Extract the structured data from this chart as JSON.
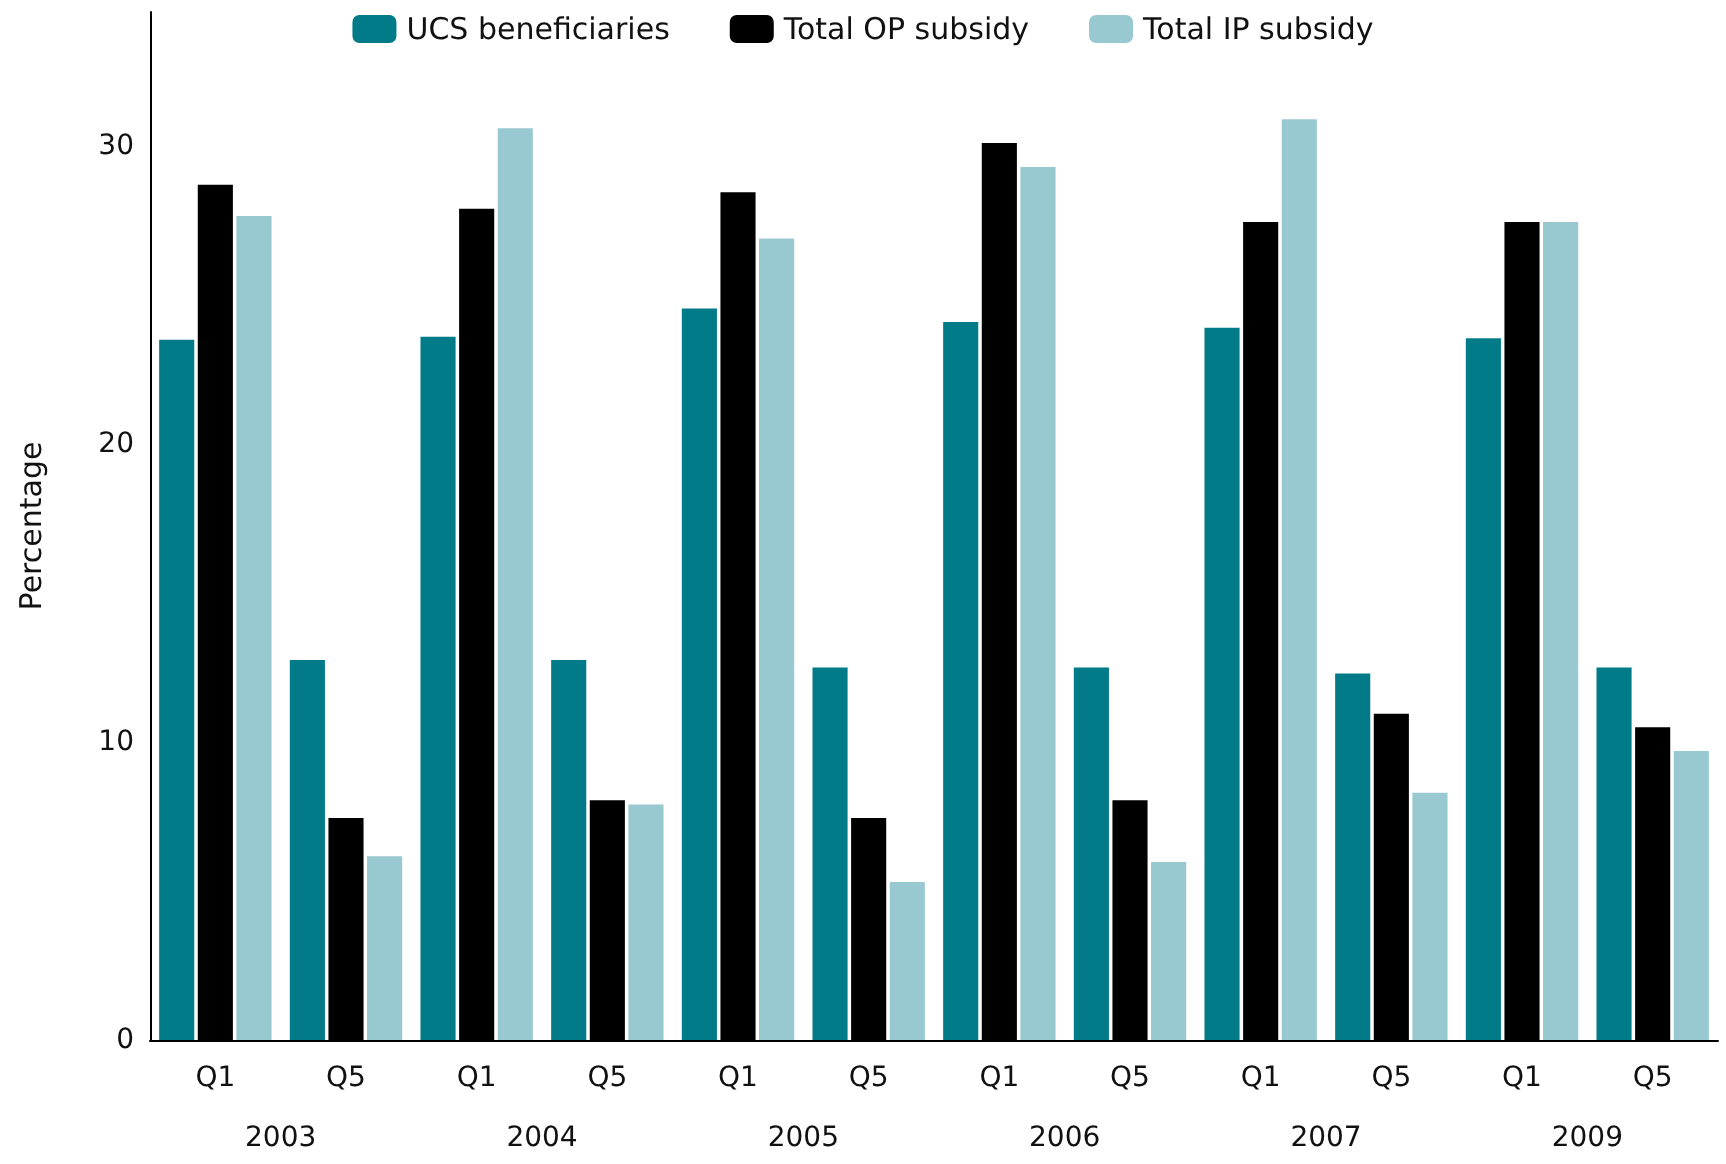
{
  "chart_data": {
    "type": "bar",
    "ylabel": "Percentage",
    "categories": [
      "Q1",
      "Q5",
      "Q1",
      "Q5",
      "Q1",
      "Q5",
      "Q1",
      "Q5",
      "Q1",
      "Q5",
      "Q1",
      "Q5"
    ],
    "annotations": [
      "2003",
      "2004",
      "2005",
      "2006",
      "2007",
      "2009"
    ],
    "series": [
      {
        "name": "UCS beneficiaries",
        "color": "#007b87",
        "values": [
          23.5,
          12.75,
          23.6,
          12.75,
          24.55,
          12.5,
          24.1,
          12.5,
          23.9,
          12.3,
          23.55,
          12.5
        ]
      },
      {
        "name": "Total OP subsidy",
        "color": "#000000",
        "values": [
          28.7,
          7.45,
          27.9,
          8.05,
          28.45,
          7.45,
          30.1,
          8.05,
          27.45,
          10.95,
          27.45,
          10.5
        ]
      },
      {
        "name": "Total IP subsidy",
        "color": "#99c9d0",
        "values": [
          27.65,
          6.17,
          30.6,
          7.9,
          26.9,
          5.3,
          29.3,
          5.97,
          30.9,
          8.3,
          27.45,
          9.7
        ]
      }
    ],
    "ylim": [
      0,
      34.5
    ],
    "yticks": [
      0,
      10,
      20,
      30
    ],
    "grid": false,
    "legend": "top"
  }
}
